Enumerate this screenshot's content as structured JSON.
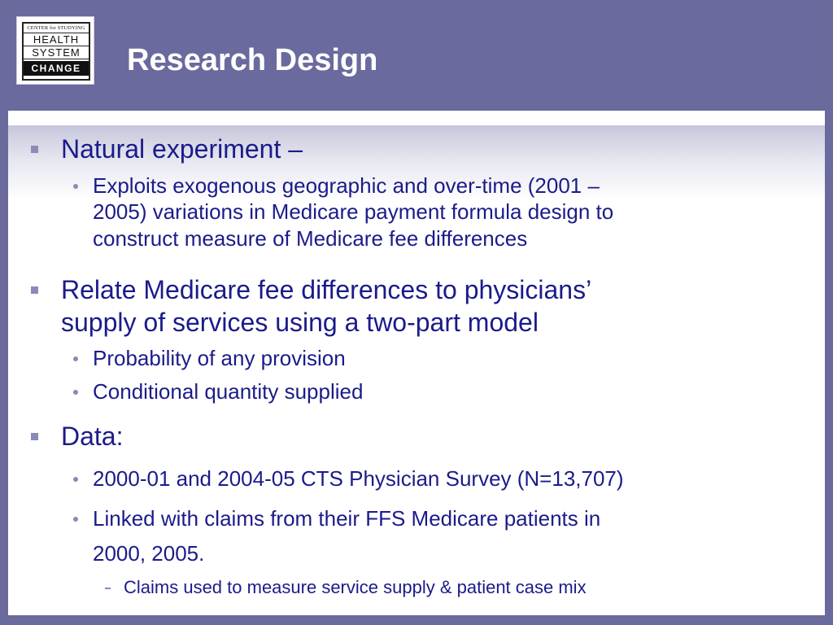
{
  "logo": {
    "top": "CENTER for STUDYING",
    "line1": "HEALTH",
    "line2": "SYSTEM",
    "line3": "CHANGE"
  },
  "title": "Research Design",
  "bullets": [
    {
      "text": "Natural experiment –",
      "sub": [
        {
          "lines": [
            "Exploits exogenous geographic and over-time (2001 –",
            "2005) variations in Medicare payment formula design to",
            "construct measure of Medicare fee differences"
          ]
        }
      ]
    },
    {
      "lines": [
        "Relate Medicare fee differences to physicians’",
        "supply of services using a two-part model"
      ],
      "sub": [
        {
          "lines": [
            "Probability of any provision"
          ]
        },
        {
          "lines": [
            "Conditional quantity supplied"
          ]
        }
      ]
    },
    {
      "text": "Data:",
      "sub": [
        {
          "lines": [
            "2000-01 and 2004-05 CTS Physician Survey (N=13,707)"
          ]
        },
        {
          "lines": [
            "Linked with claims from their FFS Medicare patients in",
            "2000, 2005."
          ],
          "sub": [
            {
              "lines": [
                "Claims used to measure service supply & patient case mix"
              ]
            }
          ]
        }
      ]
    }
  ],
  "colors": {
    "header": "#6b6a9e",
    "text": "#1b1b8a",
    "marker": "#8a8ab8"
  }
}
